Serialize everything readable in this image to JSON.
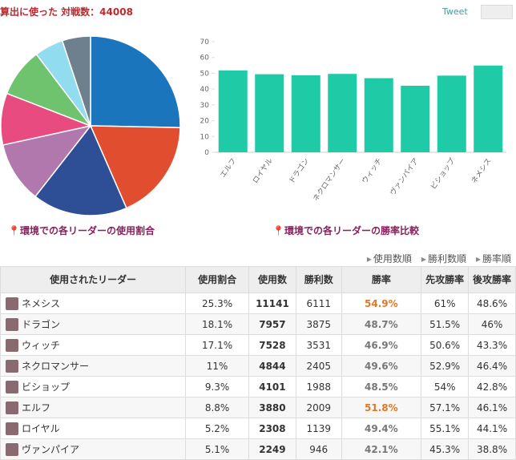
{
  "header": {
    "title": "算出に使った 対戦数：44008",
    "tweet": "Tweet"
  },
  "chart_data": [
    {
      "type": "pie",
      "title": "環境での各リーダーの使用割合",
      "values": [
        25.3,
        18.1,
        17.1,
        11,
        9.3,
        8.8,
        5.2,
        5.1
      ],
      "colors": [
        "#1b75bc",
        "#e04e2f",
        "#2e4f96",
        "#b178ae",
        "#e84b7f",
        "#6fc36f",
        "#92dcf0",
        "#6e7f8e"
      ]
    },
    {
      "type": "bar",
      "title": "環境での各リーダーの勝率比較",
      "categories": [
        "エルフ",
        "ロイヤル",
        "ドラゴン",
        "ネクロマンサー",
        "ウィッチ",
        "ヴァンパイア",
        "ビショップ",
        "ネメシス"
      ],
      "values": [
        51.8,
        49.4,
        48.7,
        49.6,
        46.9,
        42.1,
        48.5,
        54.9
      ],
      "color": "#1fcaa7",
      "ylim": [
        0,
        70
      ],
      "yticks": [
        0,
        10,
        20,
        30,
        40,
        50,
        60,
        70
      ]
    }
  ],
  "sort_links": [
    "使用数順",
    "勝利数順",
    "勝率順"
  ],
  "table": {
    "columns": [
      "使用されたリーダー",
      "使用割合",
      "使用数",
      "勝利数",
      "勝率",
      "先攻勝率",
      "後攻勝率"
    ],
    "rows": [
      [
        "ネメシス",
        "25.3%",
        "11141",
        "6111",
        "54.9%",
        "61%",
        "48.6%"
      ],
      [
        "ドラゴン",
        "18.1%",
        "7957",
        "3875",
        "48.7%",
        "51.5%",
        "46%"
      ],
      [
        "ウィッチ",
        "17.1%",
        "7528",
        "3531",
        "46.9%",
        "50.6%",
        "43.3%"
      ],
      [
        "ネクロマンサー",
        "11%",
        "4844",
        "2405",
        "49.6%",
        "52.9%",
        "46.4%"
      ],
      [
        "ビショップ",
        "9.3%",
        "4101",
        "1988",
        "48.5%",
        "54%",
        "42.8%"
      ],
      [
        "エルフ",
        "8.8%",
        "3880",
        "2009",
        "51.8%",
        "57.1%",
        "46.1%"
      ],
      [
        "ロイヤル",
        "5.2%",
        "2308",
        "1139",
        "49.4%",
        "55.1%",
        "44.1%"
      ],
      [
        "ヴァンパイア",
        "5.1%",
        "2249",
        "946",
        "42.1%",
        "45.3%",
        "38.8%"
      ]
    ]
  }
}
